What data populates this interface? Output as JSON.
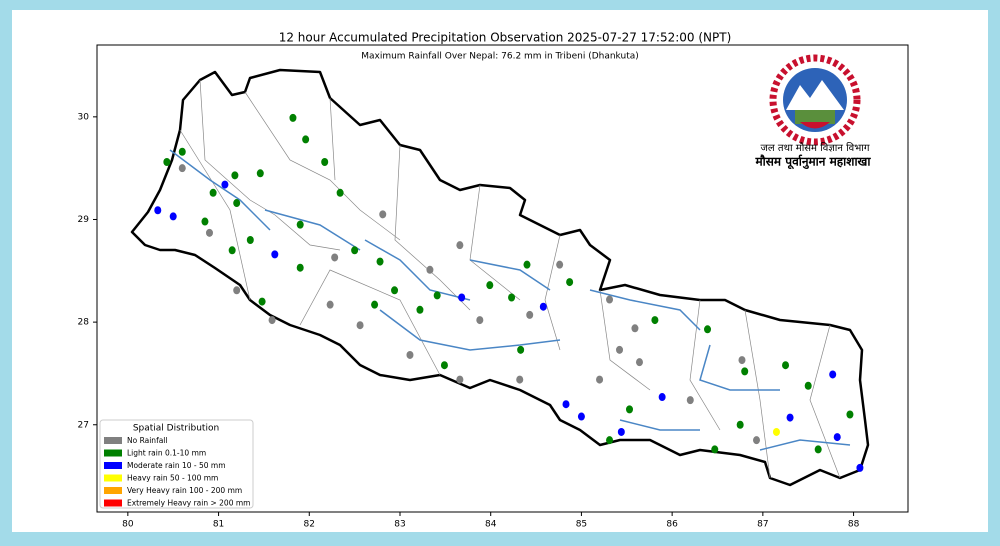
{
  "chart_data": {
    "type": "map",
    "title": "12 hour Accumulated Precipitation Observation 2025-07-27 17:52:00 (NPT)",
    "subtitle": "Maximum Rainfall Over Nepal: 76.2 mm in Tribeni (Dhankuta)",
    "agency": "जल तथा मौसम विज्ञान विभाग",
    "division": "मौसम पूर्वानुमान महाशाखा",
    "legend_title": "Spatial Distribution",
    "legend": "lower left",
    "xlim": [
      79.66,
      88.6
    ],
    "ylim": [
      26.15,
      30.7
    ],
    "xticks": [
      80,
      81,
      82,
      83,
      84,
      85,
      86,
      87,
      88
    ],
    "yticks": [
      27,
      28,
      29,
      30
    ],
    "series": [
      {
        "name": "No Rainfall",
        "color": "#808080",
        "lon": [
          80.6,
          80.9,
          81.2,
          81.59,
          82.23,
          82.56,
          82.28,
          82.81,
          83.33,
          83.66,
          83.88,
          84.43,
          84.76,
          85.31,
          85.42,
          85.59,
          85.64,
          85.2,
          84.32,
          83.66,
          83.11,
          86.2,
          86.93,
          86.77
        ],
        "lat": [
          29.5,
          28.87,
          28.31,
          28.02,
          28.17,
          27.97,
          28.63,
          29.05,
          28.51,
          28.75,
          28.02,
          28.07,
          28.56,
          28.22,
          27.73,
          27.94,
          27.61,
          27.44,
          27.44,
          27.44,
          27.68,
          27.24,
          26.85,
          27.63
        ]
      },
      {
        "name": "Light rain 0.1-10 mm",
        "color": "#008000",
        "lon": [
          80.43,
          80.6,
          80.94,
          81.18,
          81.2,
          81.46,
          81.82,
          81.96,
          82.17,
          82.34,
          81.9,
          81.35,
          80.85,
          81.15,
          81.48,
          81.9,
          82.5,
          82.78,
          82.94,
          83.22,
          83.41,
          83.99,
          84.23,
          84.4,
          84.87,
          85.81,
          86.39,
          86.8,
          87.25,
          87.5,
          87.96,
          87.61,
          86.75,
          86.47,
          85.53,
          85.31,
          84.33,
          83.49,
          82.72
        ],
        "lat": [
          29.56,
          29.66,
          29.26,
          29.43,
          29.16,
          29.45,
          29.99,
          29.78,
          29.56,
          29.26,
          28.95,
          28.8,
          28.98,
          28.7,
          28.2,
          28.53,
          28.7,
          28.59,
          28.31,
          28.12,
          28.26,
          28.36,
          28.24,
          28.56,
          28.39,
          28.02,
          27.93,
          27.52,
          27.58,
          27.38,
          27.1,
          26.76,
          27.0,
          26.76,
          27.15,
          26.85,
          27.73,
          27.58,
          28.17
        ]
      },
      {
        "name": "Moderate rain 10 - 50 mm",
        "color": "#0000ff",
        "lon": [
          81.07,
          80.33,
          80.5,
          81.62,
          83.68,
          84.58,
          84.83,
          85.0,
          85.44,
          85.89,
          87.77,
          87.82,
          88.07,
          87.3
        ],
        "lat": [
          29.34,
          29.09,
          29.03,
          28.66,
          28.24,
          28.15,
          27.2,
          27.08,
          26.93,
          27.27,
          27.49,
          26.88,
          26.58,
          27.07
        ]
      },
      {
        "name": "Heavy rain 50 - 100 mm",
        "color": "#ffff00",
        "lon": [
          87.15
        ],
        "lat": [
          26.93
        ]
      },
      {
        "name": "Very Heavy rain 100 - 200 mm",
        "color": "#ffa500",
        "lon": [],
        "lat": []
      },
      {
        "name": "Extremely Heavy rain > 200 mm",
        "color": "#ff0000",
        "lon": [],
        "lat": []
      }
    ]
  }
}
